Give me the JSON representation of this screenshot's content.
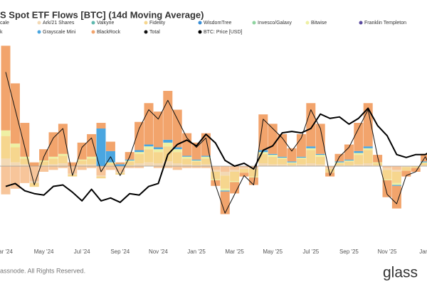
{
  "chart_data": {
    "type": "bar",
    "title": "S Spot ETF Flows [BTC] (14d Moving Average)",
    "categories": [
      "ar '24",
      null,
      null,
      null,
      "May '24",
      null,
      null,
      null,
      "Jul '24",
      null,
      null,
      null,
      "Sep '24",
      null,
      null,
      null,
      "Nov '24",
      null,
      null,
      null,
      "Jan '25",
      null,
      null,
      null,
      "Mar '25",
      null,
      null,
      null,
      "May '25",
      null,
      null,
      null,
      "Jul '25",
      null,
      null,
      null,
      "Sep '25",
      null,
      null,
      null,
      "Nov '25",
      null,
      null,
      null,
      "Jan '",
      null
    ],
    "ylim": [
      -4000,
      6000
    ],
    "y2lim": [
      30000,
      160000
    ],
    "series": [
      {
        "name": "cale",
        "color": "#f7c59a",
        "type": "bar",
        "values": [
          -1500,
          -1200,
          -900,
          -800,
          -300,
          -200,
          -100,
          -400,
          -200,
          -100,
          -500,
          -200,
          -300,
          -100,
          -100,
          0,
          -100,
          -100,
          -200,
          -100,
          -100,
          -100,
          -200,
          -300,
          -200,
          -100,
          -100,
          0,
          0,
          0,
          0,
          0,
          0,
          0,
          -100,
          0,
          0,
          0,
          0,
          0,
          -100,
          -200,
          0,
          0,
          0,
          0
        ]
      },
      {
        "name": "Ark/21 Shares",
        "color": "#f3d9b5",
        "type": "bar",
        "values": [
          400,
          200,
          100,
          -100,
          50,
          100,
          150,
          -50,
          100,
          100,
          -50,
          50,
          -50,
          50,
          150,
          200,
          150,
          250,
          150,
          100,
          50,
          100,
          -100,
          -200,
          -100,
          -50,
          -50,
          150,
          100,
          100,
          50,
          100,
          150,
          100,
          -50,
          50,
          50,
          100,
          150,
          50,
          -100,
          -100,
          -50,
          0,
          50,
          -50
        ]
      },
      {
        "name": "Valkyrie",
        "color": "#5fb8ae",
        "type": "bar",
        "values": [
          0,
          0,
          0,
          0,
          0,
          0,
          0,
          0,
          0,
          0,
          0,
          0,
          0,
          0,
          0,
          0,
          0,
          0,
          0,
          0,
          0,
          0,
          0,
          0,
          0,
          0,
          0,
          0,
          0,
          0,
          0,
          0,
          0,
          0,
          0,
          0,
          0,
          0,
          0,
          0,
          0,
          0,
          0,
          0,
          0,
          0
        ]
      },
      {
        "name": "Fidelity",
        "color": "#f6d68e",
        "type": "bar",
        "values": [
          1200,
          800,
          300,
          -200,
          200,
          300,
          400,
          -100,
          200,
          300,
          -100,
          100,
          -100,
          200,
          500,
          700,
          600,
          800,
          600,
          300,
          200,
          300,
          -400,
          -700,
          -500,
          -200,
          -400,
          500,
          400,
          300,
          100,
          300,
          700,
          400,
          -200,
          100,
          200,
          500,
          700,
          100,
          -500,
          -600,
          -200,
          -100,
          100,
          -200
        ]
      },
      {
        "name": "WisdomTree",
        "color": "#3a8fd6",
        "type": "bar",
        "values": [
          0,
          0,
          0,
          0,
          0,
          0,
          0,
          0,
          0,
          0,
          0,
          0,
          0,
          0,
          0,
          0,
          0,
          0,
          0,
          0,
          0,
          0,
          0,
          0,
          0,
          0,
          0,
          0,
          0,
          0,
          0,
          0,
          0,
          0,
          0,
          0,
          0,
          0,
          0,
          0,
          0,
          0,
          0,
          0,
          0,
          0
        ]
      },
      {
        "name": "Invesco/Galaxy",
        "color": "#8fd4a0",
        "type": "bar",
        "values": [
          0,
          0,
          0,
          0,
          0,
          0,
          0,
          0,
          0,
          0,
          0,
          0,
          0,
          0,
          0,
          0,
          0,
          0,
          0,
          0,
          0,
          0,
          0,
          0,
          0,
          0,
          0,
          0,
          0,
          0,
          0,
          0,
          0,
          0,
          0,
          0,
          0,
          0,
          0,
          0,
          0,
          0,
          0,
          0,
          0,
          0
        ]
      },
      {
        "name": "Bitwise",
        "color": "#eef0a4",
        "type": "bar",
        "values": [
          300,
          200,
          100,
          0,
          50,
          100,
          100,
          0,
          50,
          100,
          0,
          50,
          0,
          50,
          100,
          150,
          150,
          200,
          150,
          100,
          50,
          100,
          -50,
          -100,
          -50,
          0,
          -50,
          100,
          100,
          50,
          50,
          50,
          100,
          100,
          0,
          50,
          50,
          100,
          100,
          50,
          -50,
          -100,
          0,
          0,
          50,
          0
        ]
      },
      {
        "name": "Franklin Templeton",
        "color": "#5b4a9f",
        "type": "bar",
        "values": [
          0,
          0,
          0,
          0,
          0,
          0,
          0,
          0,
          0,
          0,
          0,
          0,
          0,
          0,
          0,
          0,
          0,
          0,
          0,
          0,
          0,
          0,
          0,
          0,
          0,
          0,
          0,
          0,
          0,
          0,
          0,
          0,
          0,
          0,
          0,
          0,
          0,
          0,
          0,
          0,
          0,
          0,
          0,
          0,
          0,
          0
        ]
      },
      {
        "name": "k",
        "color": "#7a7a7a",
        "type": "bar",
        "values": [
          0,
          0,
          0,
          0,
          0,
          0,
          0,
          0,
          0,
          0,
          0,
          0,
          0,
          0,
          0,
          0,
          0,
          0,
          0,
          0,
          0,
          0,
          0,
          0,
          0,
          0,
          0,
          0,
          0,
          0,
          0,
          0,
          0,
          0,
          0,
          0,
          0,
          0,
          0,
          0,
          0,
          0,
          0,
          0,
          0,
          0
        ]
      },
      {
        "name": "Grayscale Mini",
        "color": "#4aa6e0",
        "type": "bar",
        "values": [
          0,
          0,
          0,
          0,
          0,
          0,
          0,
          0,
          0,
          0,
          2000,
          600,
          100,
          50,
          100,
          100,
          100,
          150,
          100,
          50,
          50,
          50,
          0,
          -50,
          0,
          0,
          0,
          100,
          50,
          50,
          50,
          50,
          100,
          50,
          0,
          50,
          50,
          100,
          100,
          0,
          0,
          -50,
          0,
          0,
          50,
          0
        ]
      },
      {
        "name": "BlackRock",
        "color": "#f2a46c",
        "type": "bar",
        "values": [
          4500,
          3200,
          1800,
          200,
          600,
          1300,
          1600,
          200,
          900,
          1200,
          300,
          500,
          100,
          400,
          1500,
          2200,
          1900,
          2600,
          2000,
          1200,
          900,
          1200,
          -300,
          -1200,
          -600,
          -200,
          -400,
          1900,
          1600,
          1200,
          700,
          1200,
          2300,
          1600,
          -200,
          400,
          800,
          1500,
          2300,
          400,
          -900,
          -1200,
          -300,
          -200,
          400,
          -300
        ]
      },
      {
        "name": "Total",
        "color": "#111111",
        "type": "line",
        "width": 1,
        "values": [
          5000,
          3000,
          1000,
          -1000,
          500,
          1500,
          2000,
          -500,
          1000,
          1500,
          -300,
          500,
          -500,
          500,
          2000,
          3000,
          2500,
          3500,
          2500,
          1500,
          1000,
          1500,
          -1000,
          -2500,
          -1500,
          -500,
          -1000,
          2500,
          2000,
          1500,
          800,
          1500,
          3000,
          2000,
          -500,
          500,
          1000,
          2000,
          3000,
          500,
          -1500,
          -2000,
          -500,
          -300,
          500,
          -500
        ]
      },
      {
        "name": "BTC: Price [USD]",
        "color": "#000000",
        "type": "line",
        "width": 2,
        "axis": "y2",
        "values": [
          68000,
          70000,
          65000,
          63000,
          62000,
          68000,
          69000,
          64000,
          58000,
          66000,
          58000,
          60000,
          57000,
          63000,
          62000,
          68000,
          70000,
          90000,
          97000,
          100000,
          96000,
          104000,
          98000,
          86000,
          82000,
          84000,
          80000,
          93000,
          96000,
          105000,
          106000,
          105000,
          108000,
          118000,
          115000,
          116000,
          111000,
          115000,
          122000,
          110000,
          103000,
          90000,
          88000,
          90000,
          90000,
          94000
        ]
      }
    ]
  },
  "footer": {
    "copyright": "assnode. All Rights Reserved.",
    "logo": "glass"
  }
}
